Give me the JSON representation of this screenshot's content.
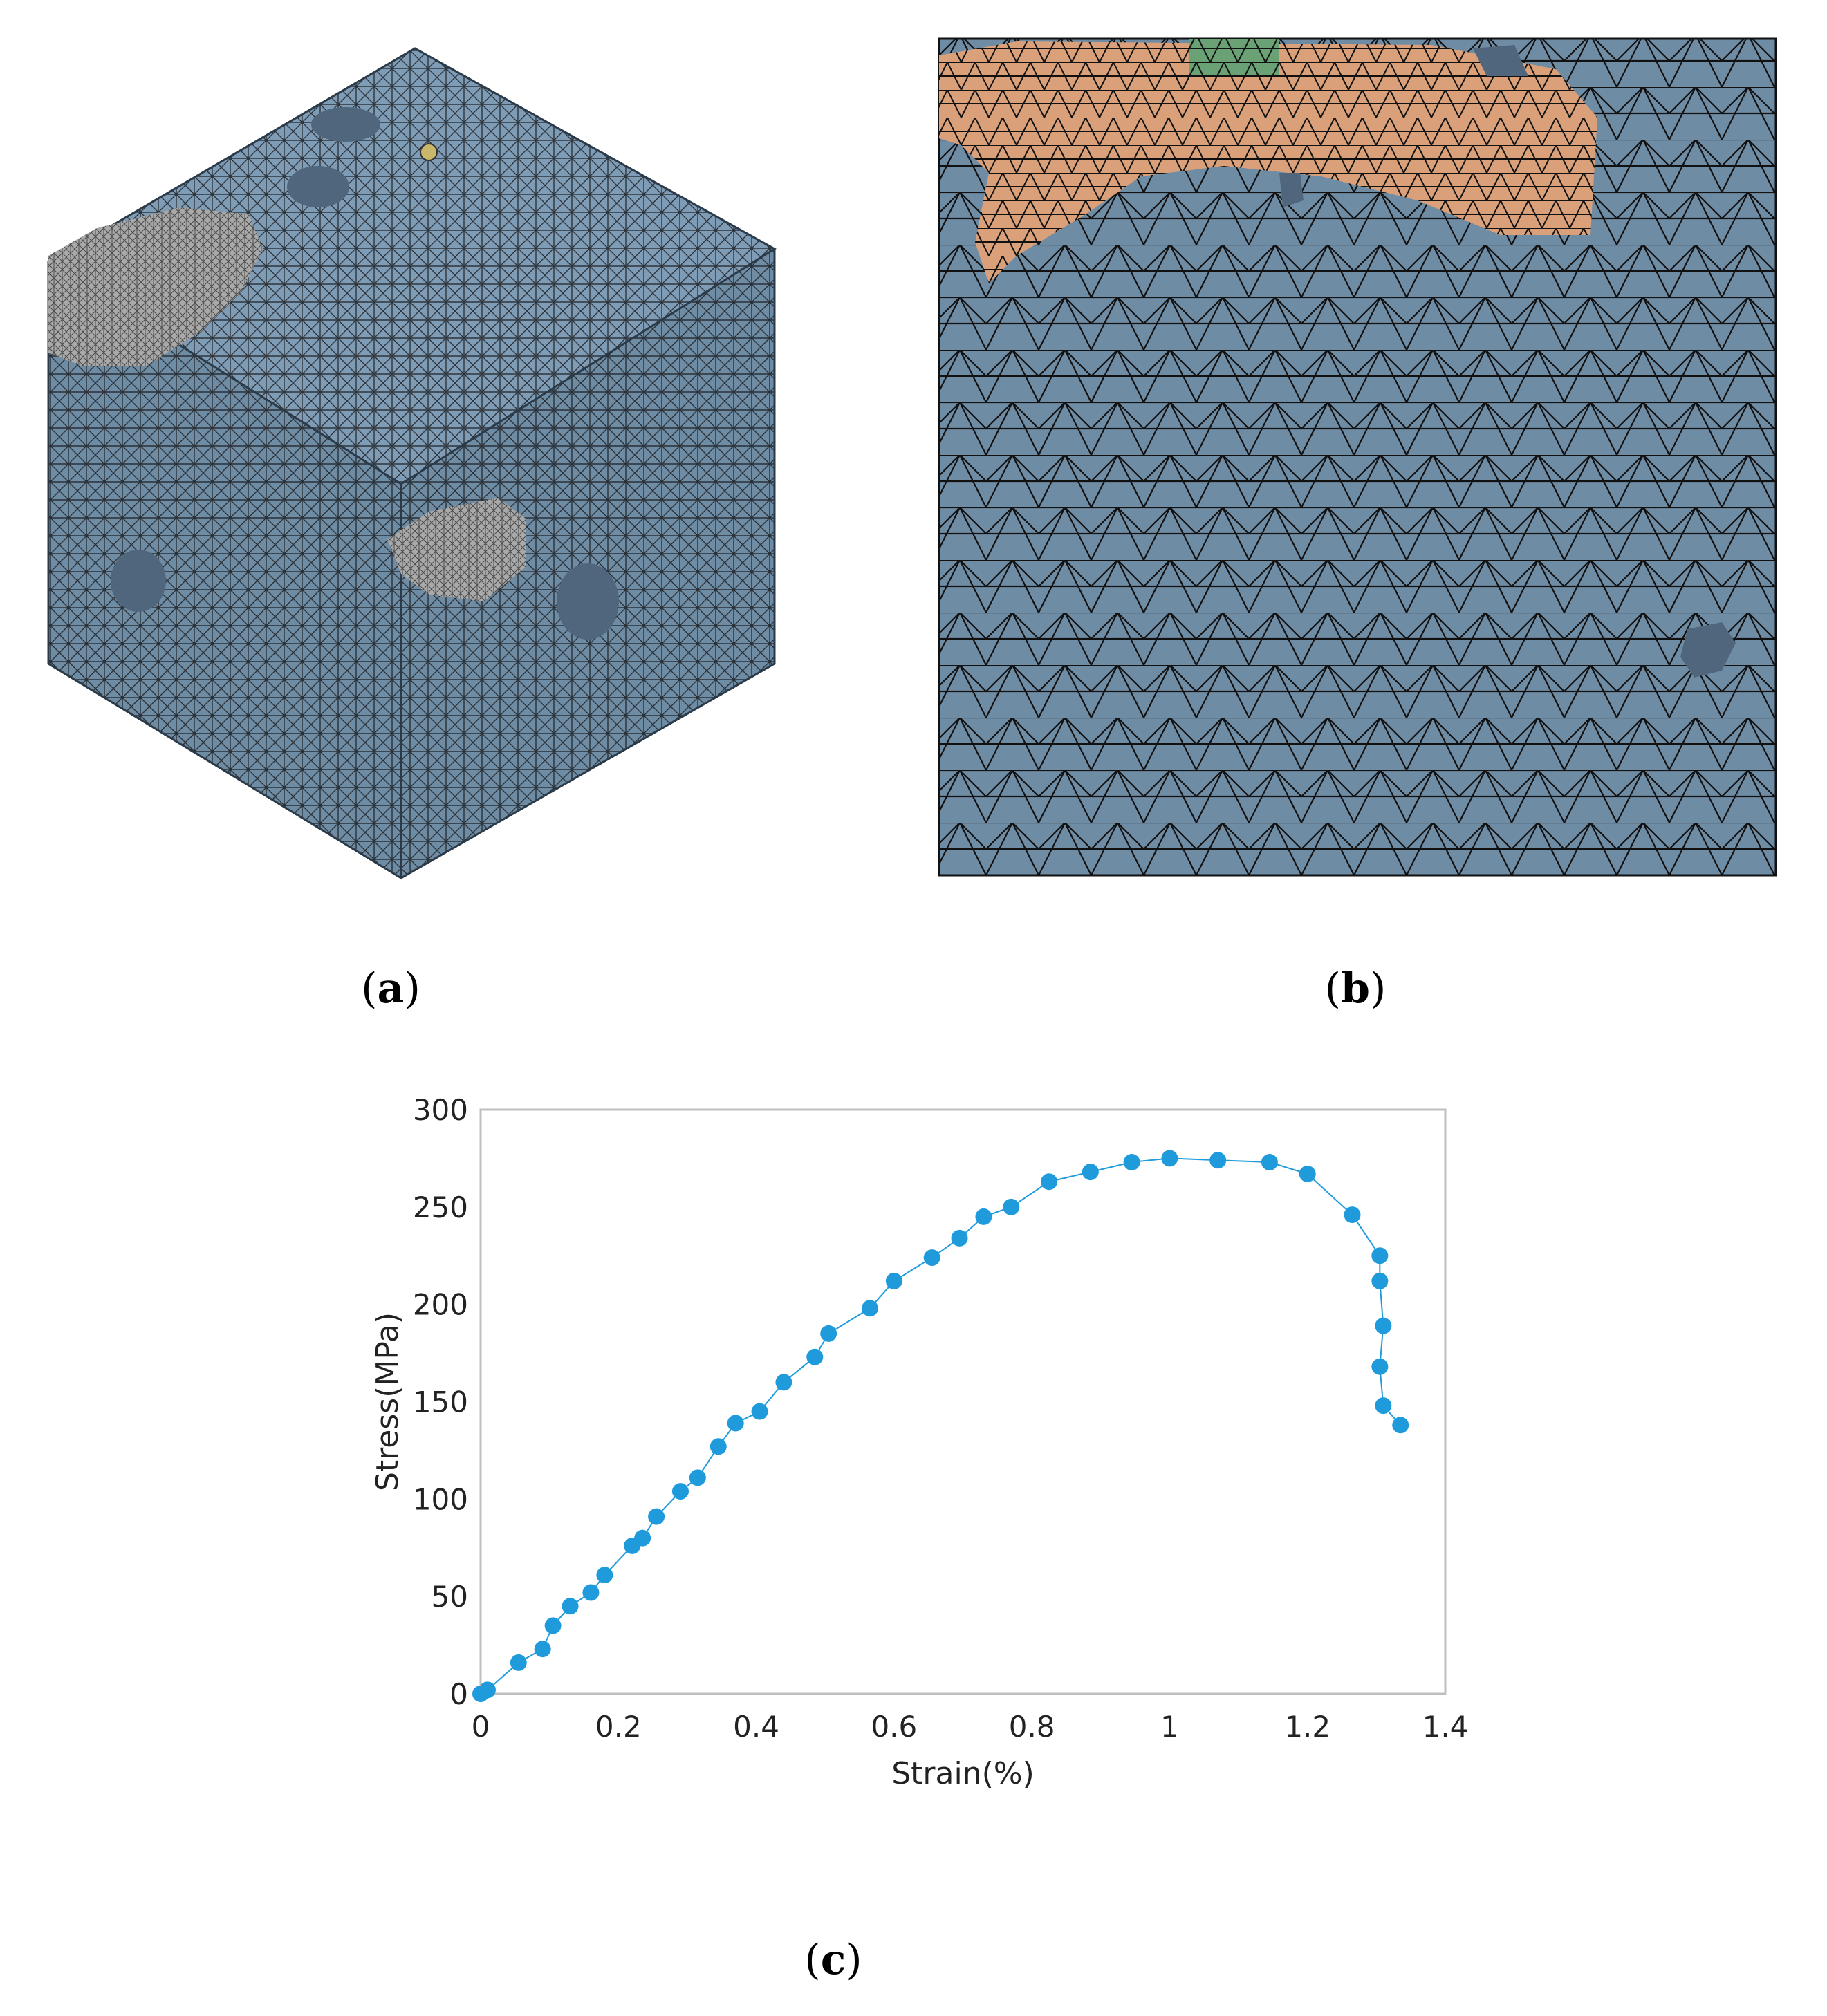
{
  "colors": {
    "mesh_blue": "#6f8ca5",
    "mesh_blue_dark": "#4f667c",
    "mesh_blue_top": "#7f9cb6",
    "inclusion_grey": "#a9a9a9",
    "inclusion_orange": "#d9a07a",
    "inclusion_green": "#6aa276",
    "mesh_line": "#111111",
    "series_color": "#1f9bdc",
    "axis_color": "#bfbfbf"
  },
  "captions": {
    "a": {
      "open": "(",
      "letter": "a",
      "close": ")"
    },
    "b": {
      "open": "(",
      "letter": "b",
      "close": ")"
    },
    "c": {
      "open": "(",
      "letter": "c",
      "close": ")"
    }
  },
  "chart_data": {
    "type": "scatter",
    "title": "",
    "xlabel": "Strain(%)",
    "ylabel": "Stress(MPa)",
    "xlim": [
      0,
      1.4
    ],
    "ylim": [
      0,
      300
    ],
    "xticks": [
      0,
      0.2,
      0.4,
      0.6,
      0.8,
      1,
      1.2,
      1.4
    ],
    "xtick_labels": [
      "0",
      "0.2",
      "0.4",
      "0.6",
      "0.8",
      "1",
      "1.2",
      "1.4"
    ],
    "yticks": [
      0,
      50,
      100,
      150,
      200,
      250,
      300
    ],
    "ytick_labels": [
      "0",
      "50",
      "100",
      "150",
      "200",
      "250",
      "300"
    ],
    "grid": false,
    "legend": "none",
    "series": [
      {
        "color": "#1f9bdc",
        "marker": "circle",
        "connected": true,
        "x": [
          0.0,
          0.01,
          0.055,
          0.09,
          0.105,
          0.13,
          0.16,
          0.18,
          0.22,
          0.235,
          0.255,
          0.29,
          0.315,
          0.345,
          0.37,
          0.405,
          0.44,
          0.485,
          0.505,
          0.565,
          0.6,
          0.655,
          0.695,
          0.73,
          0.77,
          0.825,
          0.885,
          0.945,
          1.0,
          1.07,
          1.145,
          1.2,
          1.265,
          1.305,
          1.305,
          1.31,
          1.305,
          1.31,
          1.335
        ],
        "y": [
          0,
          2,
          16,
          23,
          35,
          45,
          52,
          61,
          76,
          80,
          91,
          104,
          111,
          127,
          139,
          145,
          160,
          173,
          185,
          198,
          212,
          224,
          234,
          245,
          250,
          263,
          268,
          273,
          275,
          274,
          273,
          267,
          246,
          225,
          212,
          189,
          168,
          148,
          138
        ]
      }
    ]
  }
}
